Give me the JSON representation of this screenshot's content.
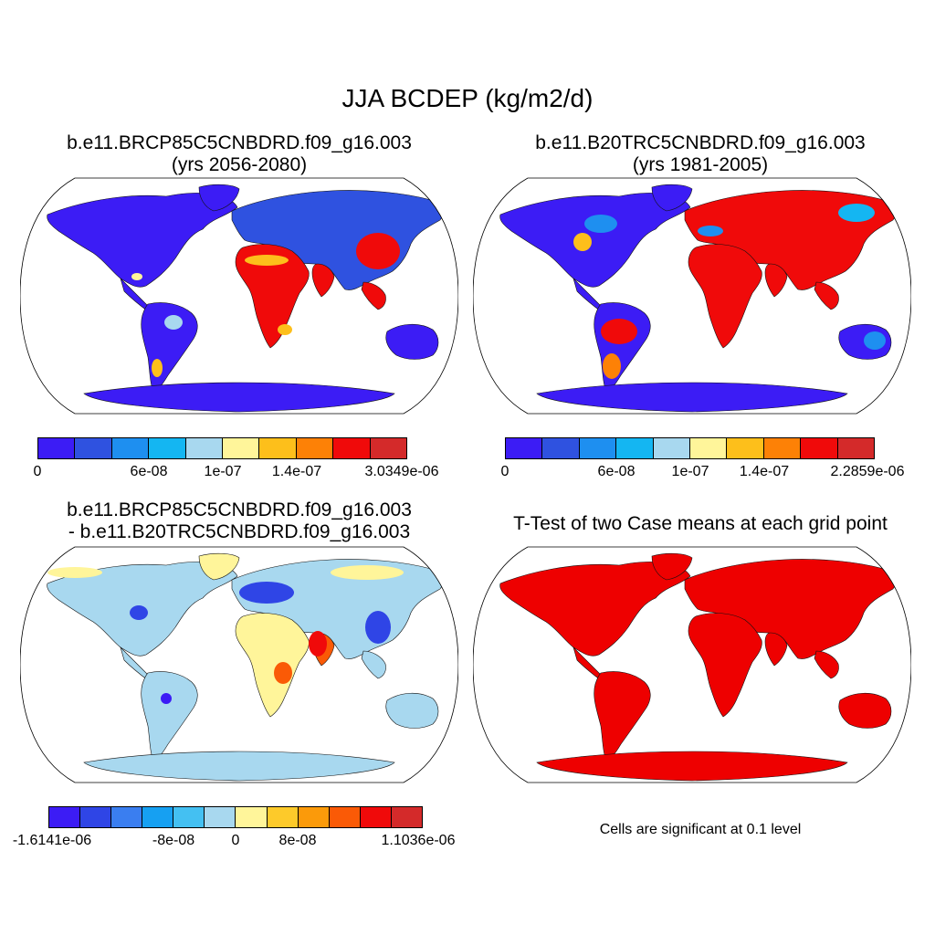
{
  "main_title": "JJA BCDEP (kg/m2/d)",
  "panels": [
    {
      "title_line1": "b.e11.BRCP85C5CNBDRD.f09_g16.003",
      "title_line2": "(yrs 2056-2080)",
      "colorbar": {
        "colors": [
          "#3c1cf5",
          "#2f52e0",
          "#1e8ff0",
          "#14b6f2",
          "#a8d8ef",
          "#fff59a",
          "#fdbf1b",
          "#fd8106",
          "#f00a0a",
          "#d42a2a"
        ],
        "labels": [
          "0",
          "6e-08",
          "1e-07",
          "1.4e-07",
          "3.0349e-06"
        ]
      }
    },
    {
      "title_line1": "b.e11.B20TRC5CNBDRD.f09_g16.003",
      "title_line2": "(yrs 1981-2005)",
      "colorbar": {
        "colors": [
          "#3c1cf5",
          "#2f52e0",
          "#1e8ff0",
          "#14b6f2",
          "#a8d8ef",
          "#fff59a",
          "#fdbf1b",
          "#fd8106",
          "#f00a0a",
          "#d42a2a"
        ],
        "labels": [
          "0",
          "6e-08",
          "1e-07",
          "1.4e-07",
          "2.2859e-06"
        ]
      }
    },
    {
      "title_line1": "b.e11.BRCP85C5CNBDRD.f09_g16.003",
      "title_line2": "- b.e11.B20TRC5CNBDRD.f09_g16.003",
      "colorbar": {
        "colors": [
          "#3c1cf5",
          "#2f45e6",
          "#3a7ef0",
          "#16a0f2",
          "#44c0f2",
          "#a8d8ef",
          "#fff59a",
          "#fdca2a",
          "#fb9a0a",
          "#fa5a06",
          "#f00a0a",
          "#d42a2a"
        ],
        "labels": [
          "-1.6141e-06",
          "-8e-08",
          "0",
          "8e-08",
          "1.1036e-06"
        ]
      }
    },
    {
      "title_line1": "T-Test of two Case means at each grid point",
      "note": "Cells are significant at 0.1 level",
      "color": "#ee0000"
    }
  ]
}
